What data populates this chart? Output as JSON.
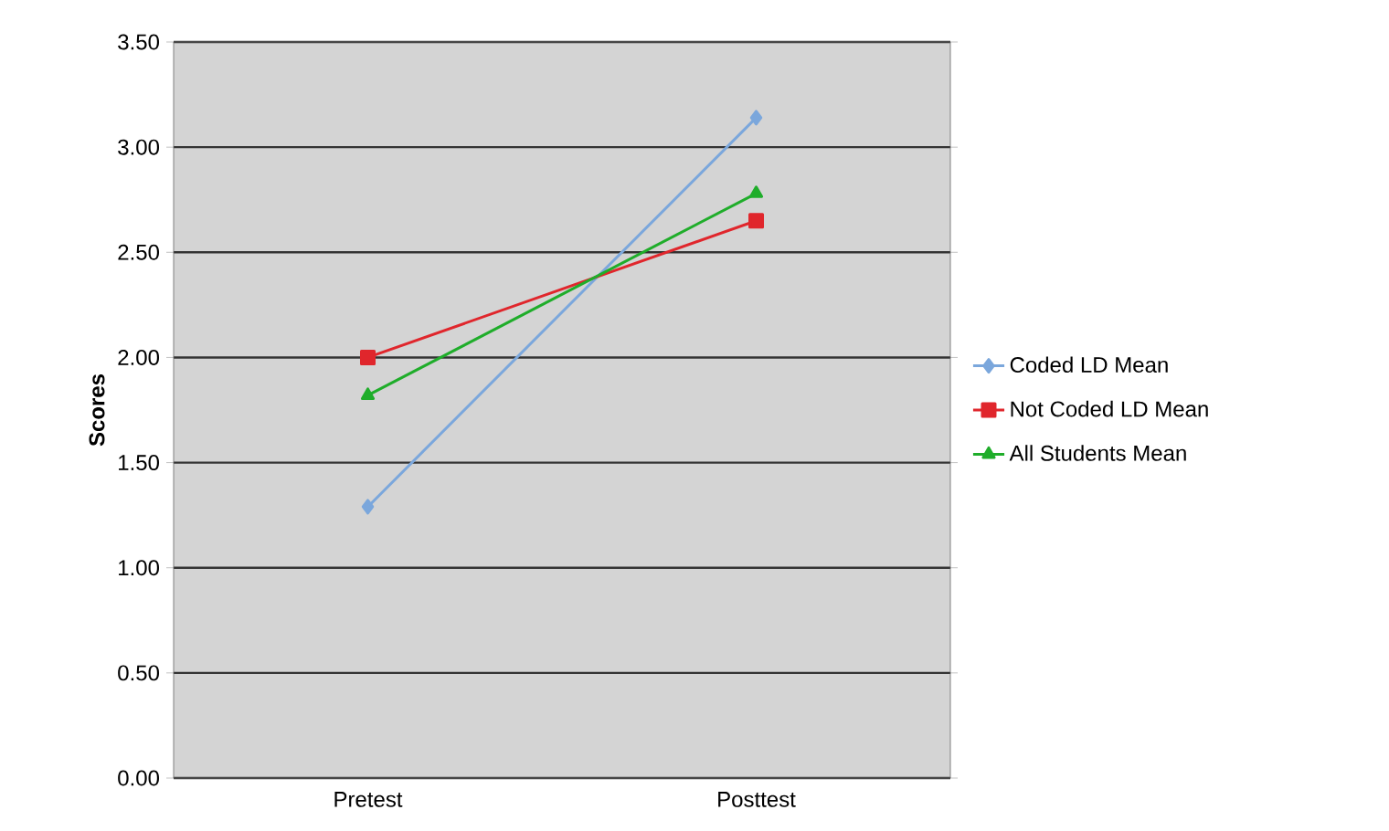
{
  "chart_data": {
    "type": "line",
    "ylabel": "Scores",
    "categories": [
      "Pretest",
      "Posttest"
    ],
    "series": [
      {
        "name": "Coded LD Mean",
        "color": "#7ba7dc",
        "marker": "diamond",
        "values": [
          1.29,
          3.14
        ]
      },
      {
        "name": "Not Coded LD Mean",
        "color": "#e0262c",
        "marker": "square",
        "values": [
          2.0,
          2.65
        ]
      },
      {
        "name": "All Students Mean",
        "color": "#1fad2a",
        "marker": "triangle",
        "values": [
          1.82,
          2.78
        ]
      }
    ],
    "ylim": [
      0,
      3.5
    ],
    "yticks": [
      {
        "value": 0,
        "label": "0.00"
      },
      {
        "value": 0.5,
        "label": "0.50"
      },
      {
        "value": 1,
        "label": "1.00"
      },
      {
        "value": 1.5,
        "label": "1.50"
      },
      {
        "value": 2,
        "label": "2.00"
      },
      {
        "value": 2.5,
        "label": "2.50"
      },
      {
        "value": 3,
        "label": "3.00"
      },
      {
        "value": 3.5,
        "label": "3.50"
      }
    ],
    "grid": "y",
    "legend": "right"
  }
}
